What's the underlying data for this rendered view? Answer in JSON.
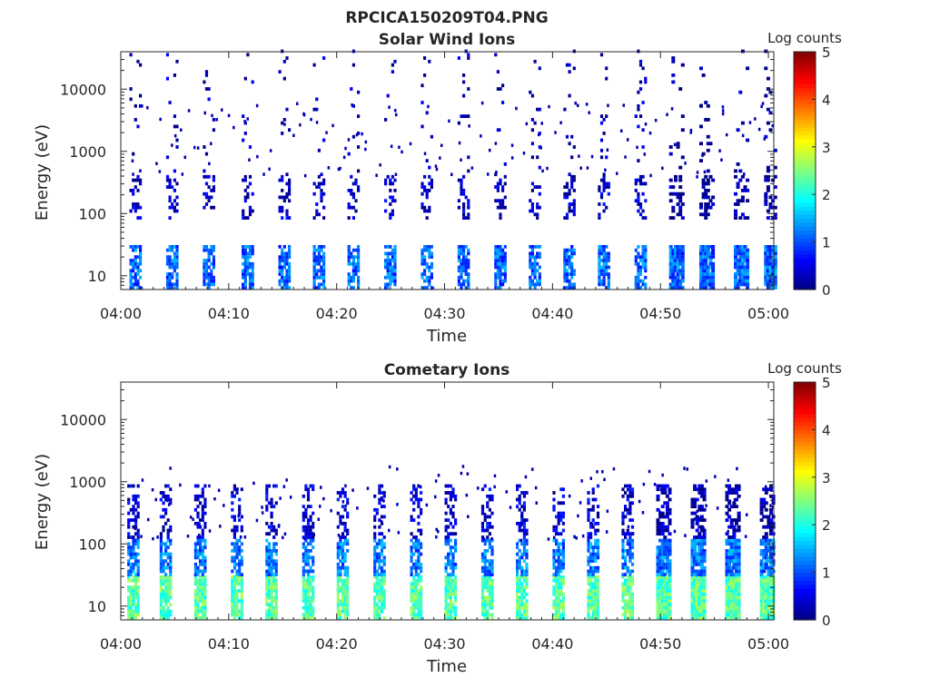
{
  "figure_title": "RPCICA150209T04.PNG",
  "chart_data": [
    {
      "type": "heatmap",
      "title": "Solar Wind Ions",
      "xlabel": "Time",
      "ylabel": "Energy (eV)",
      "x_ticks": [
        "04:00",
        "04:10",
        "04:20",
        "04:30",
        "04:40",
        "04:50",
        "05:00"
      ],
      "x_range_minutes": [
        0,
        60.5
      ],
      "y_ticks": [
        10,
        100,
        1000,
        10000
      ],
      "y_tick_labels": [
        "10",
        "100",
        "1000",
        "10000"
      ],
      "y_scale": "log",
      "ylim": [
        6,
        40000
      ],
      "colorbar": {
        "label": "Log counts",
        "range": [
          0,
          5
        ],
        "ticks": [
          "0",
          "1",
          "2",
          "3",
          "4",
          "5"
        ],
        "colormap": "jet"
      },
      "sweep_start_minutes": [
        0.8,
        4.2,
        7.6,
        11.2,
        14.6,
        17.8,
        21.0,
        24.4,
        27.8,
        31.2,
        34.6,
        37.8,
        41.0,
        44.2,
        47.6,
        50.8,
        53.6,
        56.8,
        59.6
      ],
      "bands": [
        {
          "e_min": 6,
          "e_max": 30,
          "level": 1.1,
          "density": 0.75
        },
        {
          "e_min": 80,
          "e_max": 400,
          "level": 0.3,
          "density": 0.35
        },
        {
          "e_min": 400,
          "e_max": 40000,
          "level": 0.2,
          "density": 0.06
        }
      ]
    },
    {
      "type": "heatmap",
      "title": "Cometary Ions",
      "xlabel": "Time",
      "ylabel": "Energy (eV)",
      "x_ticks": [
        "04:00",
        "04:10",
        "04:20",
        "04:30",
        "04:40",
        "04:50",
        "05:00"
      ],
      "x_range_minutes": [
        0,
        60.5
      ],
      "y_ticks": [
        10,
        100,
        1000,
        10000
      ],
      "y_tick_labels": [
        "10",
        "100",
        "1000",
        "10000"
      ],
      "y_scale": "log",
      "ylim": [
        6,
        40000
      ],
      "colorbar": {
        "label": "Log counts",
        "range": [
          0,
          5
        ],
        "ticks": [
          "0",
          "1",
          "2",
          "3",
          "4",
          "5"
        ],
        "colormap": "jet"
      },
      "sweep_start_minutes": [
        0.6,
        3.6,
        6.8,
        10.2,
        13.4,
        16.8,
        20.0,
        23.4,
        26.8,
        30.0,
        33.4,
        36.6,
        40.0,
        43.2,
        46.4,
        49.6,
        52.8,
        56.0,
        59.2
      ],
      "bands": [
        {
          "e_min": 6,
          "e_max": 30,
          "level": 2.3,
          "density": 0.9
        },
        {
          "e_min": 30,
          "e_max": 120,
          "level": 1.2,
          "density": 0.8
        },
        {
          "e_min": 120,
          "e_max": 900,
          "level": 0.4,
          "density": 0.45
        }
      ]
    }
  ]
}
